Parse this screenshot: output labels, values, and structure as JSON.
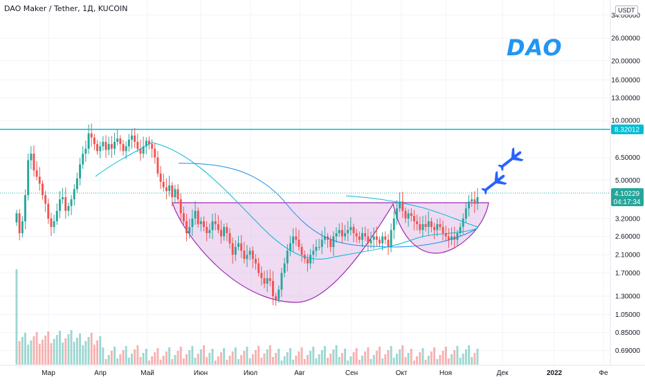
{
  "header": {
    "title": "DAO Maker / Tether, 1Д, KUCOIN"
  },
  "brand": {
    "text": "DAO"
  },
  "axis": {
    "currency": "USDT",
    "y_ticks": [
      "34.00000",
      "26.00000",
      "20.00000",
      "16.00000",
      "13.00000",
      "10.00000",
      "6.50000",
      "5.00000",
      "3.20000",
      "2.60000",
      "2.10000",
      "1.70000",
      "1.30000",
      "1.05000",
      "0.85000",
      "0.69000"
    ],
    "x_ticks": [
      "Мар",
      "Апр",
      "Май",
      "Июн",
      "Июл",
      "Авг",
      "Сен",
      "Окт",
      "Ноя",
      "Дек",
      "2022",
      "Фе"
    ]
  },
  "markers": {
    "resistance_label": "8.32012",
    "price_label": "4.10229",
    "timer_label": "04:17:34"
  },
  "colors": {
    "up": "#26a69a",
    "down": "#ef5350",
    "cup_fill": "#e1bee7",
    "cup_stroke": "#9c27b0",
    "resistance": "#00bcd4",
    "ma_fast": "#2196f3",
    "ma_slow": "#1e88e5",
    "plane": "#2962ff"
  },
  "icons": [
    "plane-icon",
    "plane-icon"
  ],
  "chart_data": {
    "type": "candlestick",
    "title": "DAO Maker / Tether, 1Д, KUCOIN",
    "y_scale": "log",
    "ylim": [
      0.62,
      38
    ],
    "x": [
      "Мар",
      "Апр",
      "Май",
      "Июн",
      "Июл",
      "Авг",
      "Сен",
      "Окт",
      "Ноя",
      "Дек",
      "2022",
      "Фе"
    ],
    "close_series": [
      3.4,
      2.7,
      3.1,
      4.2,
      6.3,
      6.8,
      5.6,
      5.2,
      4.8,
      4.2,
      3.8,
      3.2,
      2.9,
      3.1,
      3.5,
      4.0,
      4.1,
      3.5,
      3.7,
      4.0,
      4.5,
      5.1,
      6.0,
      6.8,
      7.2,
      8.6,
      8.2,
      7.6,
      7.0,
      7.4,
      7.8,
      7.1,
      7.6,
      7.2,
      7.8,
      8.1,
      7.6,
      7.0,
      7.4,
      8.0,
      8.4,
      7.8,
      7.2,
      6.8,
      7.4,
      7.9,
      7.6,
      7.2,
      6.5,
      5.4,
      4.9,
      4.6,
      4.4,
      4.7,
      4.1,
      4.5,
      4.0,
      3.4,
      3.1,
      2.7,
      2.9,
      3.2,
      3.5,
      3.0,
      3.1,
      2.9,
      2.7,
      2.8,
      3.1,
      3.0,
      2.8,
      2.6,
      2.9,
      2.7,
      2.4,
      2.1,
      2.3,
      2.4,
      2.2,
      2.0,
      2.1,
      2.2,
      2.0,
      1.9,
      1.7,
      1.6,
      1.5,
      1.6,
      1.55,
      1.3,
      1.25,
      1.4,
      1.7,
      1.9,
      2.2,
      2.4,
      2.6,
      2.5,
      2.3,
      2.1,
      2.0,
      1.9,
      2.1,
      2.2,
      2.3,
      2.3,
      2.5,
      2.6,
      2.5,
      2.3,
      2.6,
      2.7,
      2.8,
      2.6,
      2.7,
      2.8,
      2.9,
      2.7,
      2.6,
      2.5,
      2.7,
      2.6,
      2.4,
      2.5,
      2.6,
      2.5,
      2.4,
      2.6,
      2.5,
      2.3,
      2.8,
      3.2,
      3.6,
      3.9,
      3.5,
      3.2,
      3.4,
      3.3,
      3.1,
      3.0,
      2.8,
      3.0,
      2.9,
      3.1,
      2.9,
      2.8,
      3.0,
      2.9,
      2.7,
      2.6,
      2.5,
      2.6,
      2.5,
      2.7,
      2.9,
      3.2,
      3.6,
      3.9,
      4.0,
      3.8,
      4.1
    ],
    "annotations": {
      "resistance": 8.32012,
      "last_price": 4.10229,
      "pattern": "cup and handle"
    }
  }
}
